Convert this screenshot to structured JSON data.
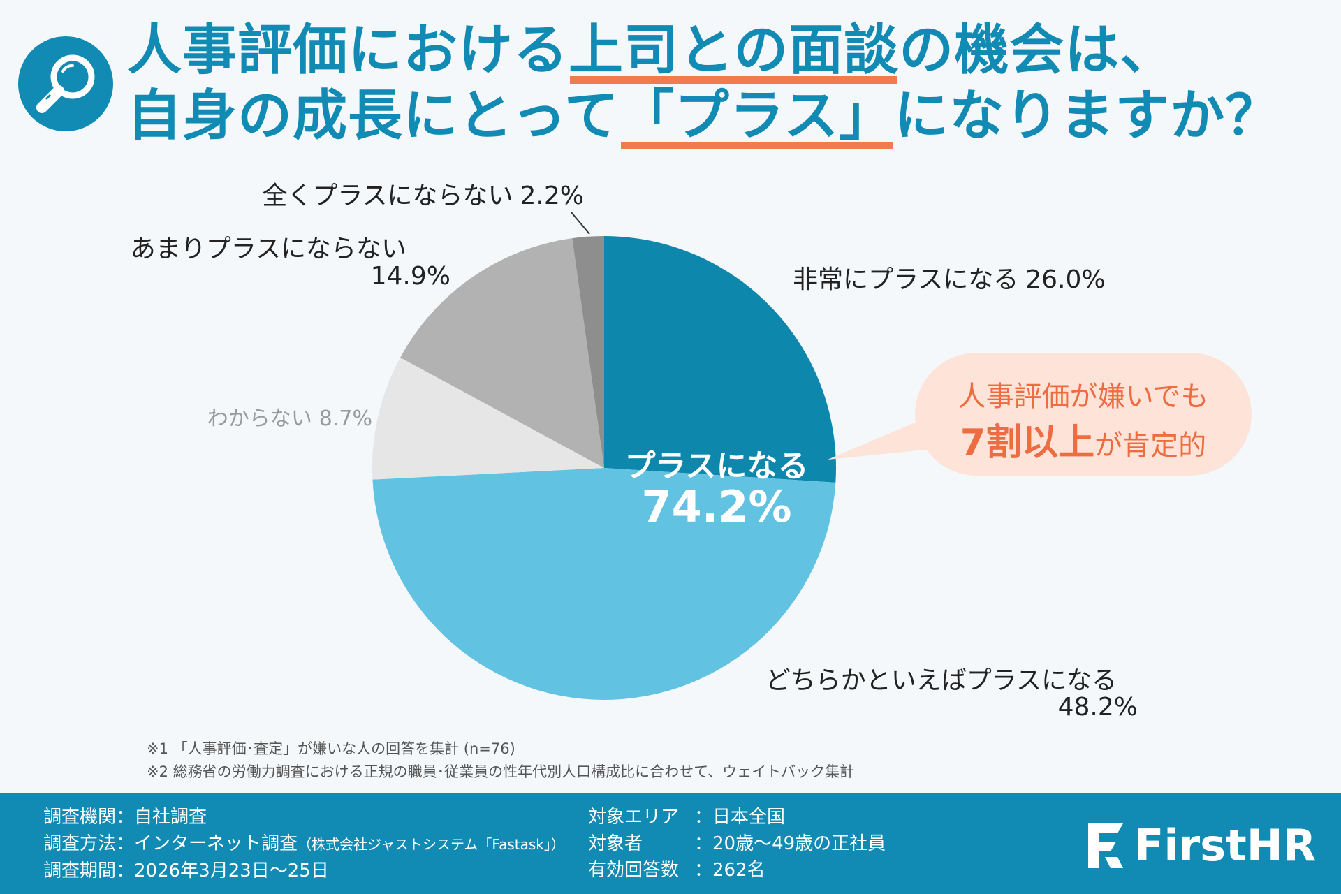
{
  "title": {
    "line1_pre": "人事評価における",
    "line1_hl": "上司との面談",
    "line1_post": "の機会は、",
    "line2_pre": "自身の成長にとって",
    "line2_hl": "「プラス」",
    "line2_post": "になりますか？"
  },
  "chart_data": {
    "type": "pie",
    "start": "12 o'clock, clockwise",
    "slices": [
      {
        "label": "非常にプラスになる",
        "value": 26.0,
        "value_label": "26.0%",
        "color": "#0e87ac",
        "label_color": "#222222"
      },
      {
        "label": "どちらかといえばプラスになる",
        "value": 48.2,
        "value_label": "48.2%",
        "color": "#62c2e1",
        "label_color": "#222222"
      },
      {
        "label": "わからない",
        "value": 8.7,
        "value_label": "8.7%",
        "color": "#e6e6e6",
        "label_color": "#9a9a9a"
      },
      {
        "label": "あまりプラスにならない",
        "value": 14.9,
        "value_label": "14.9%",
        "color": "#b2b2b2",
        "label_color": "#222222"
      },
      {
        "label": "全くプラスにならない",
        "value": 2.2,
        "value_label": "2.2%",
        "color": "#8e8e8e",
        "label_color": "#222222"
      }
    ],
    "center_label": "プラスになる",
    "center_value": "74.2%"
  },
  "callout": {
    "line1": "人事評価が嫌いでも",
    "strong": "7割以上",
    "rest": "が肯定的"
  },
  "notes": {
    "n1": "※1 「人事評価･査定」が嫌いな人の回答を集計 (n=76)",
    "n2": "※2 総務省の労働力調査における正規の職員･従業員の性年代別人口構成比に合わせて、ウェイトバック集計"
  },
  "footer": {
    "agency_key": "調査機関：",
    "agency": "自社調査",
    "method_key": "調査方法：",
    "method": "インターネット調査",
    "method_note": "（株式会社ジャストシステム「Fastask」）",
    "period_key": "調査期間：",
    "period": "2026年3月23日〜25日",
    "area_key": "対象エリア",
    "area": "：日本全国",
    "target_key": "対象者",
    "target": "：20歳〜49歳の正社員",
    "count_key": "有効回答数",
    "count": "：262名"
  },
  "brand": {
    "name": "FirstHR"
  },
  "colors": {
    "accent": "#128bb4",
    "highlight": "#f27a4f",
    "callout_bg": "#fde3d8",
    "callout_text": "#ee6c42"
  }
}
